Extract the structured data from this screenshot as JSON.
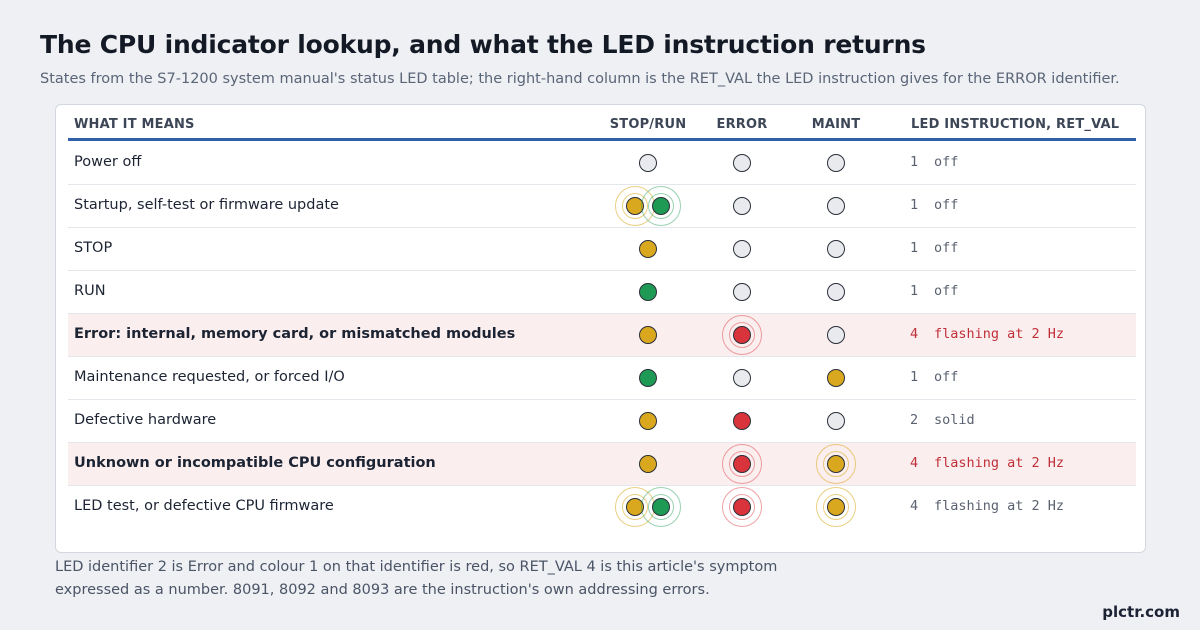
{
  "title": "The CPU indicator lookup, and what the LED instruction returns",
  "subtitle": "States from the S7-1200 system manual's status LED table; the right-hand column is the RET_VAL the LED instruction gives for the ERROR identifier.",
  "columns": {
    "meaning": "WHAT IT MEANS",
    "stop_run": "STOP/RUN",
    "error": "ERROR",
    "maint": "MAINT",
    "ret_val": "LED INSTRUCTION, RET_VAL"
  },
  "colors": {
    "off": "#e8eaee",
    "amber": "#d9a81e",
    "green": "#1e9a55",
    "red": "#d9343c",
    "accent": "#2e5fa8",
    "highlight_row": "#fbeeee",
    "error_text": "#c0303a"
  },
  "rows": [
    {
      "label": "Power off",
      "stop_run": "off",
      "error": "off",
      "maint": "off",
      "code": "1",
      "state": "off",
      "highlight": false
    },
    {
      "label": "Startup, self-test or firmware update",
      "stop_run": "amber-green-alternating",
      "error": "off",
      "maint": "off",
      "code": "1",
      "state": "off",
      "highlight": false
    },
    {
      "label": "STOP",
      "stop_run": "amber",
      "error": "off",
      "maint": "off",
      "code": "1",
      "state": "off",
      "highlight": false
    },
    {
      "label": "RUN",
      "stop_run": "green",
      "error": "off",
      "maint": "off",
      "code": "1",
      "state": "off",
      "highlight": false
    },
    {
      "label": "Error: internal, memory card, or mismatched modules",
      "stop_run": "amber",
      "error": "red-flashing",
      "maint": "off",
      "code": "4",
      "state": "flashing at 2 Hz",
      "highlight": true
    },
    {
      "label": "Maintenance requested, or forced I/O",
      "stop_run": "green",
      "error": "off",
      "maint": "amber",
      "code": "1",
      "state": "off",
      "highlight": false
    },
    {
      "label": "Defective hardware",
      "stop_run": "amber",
      "error": "red",
      "maint": "off",
      "code": "2",
      "state": "solid",
      "highlight": false
    },
    {
      "label": "Unknown or incompatible CPU configuration",
      "stop_run": "amber",
      "error": "red-flashing",
      "maint": "amber-flashing",
      "code": "4",
      "state": "flashing at 2 Hz",
      "highlight": true
    },
    {
      "label": "LED test, or defective CPU firmware",
      "stop_run": "amber-green-flashing",
      "error": "red-flashing",
      "maint": "amber-flashing",
      "code": "4",
      "state": "flashing at 2 Hz",
      "highlight": false
    }
  ],
  "footnote": "LED identifier 2 is Error and colour 1 on that identifier is red, so RET_VAL 4 is this article's symptom expressed as a number. 8091, 8092 and 8093 are the instruction's own addressing errors.",
  "brand": "plctr.com"
}
